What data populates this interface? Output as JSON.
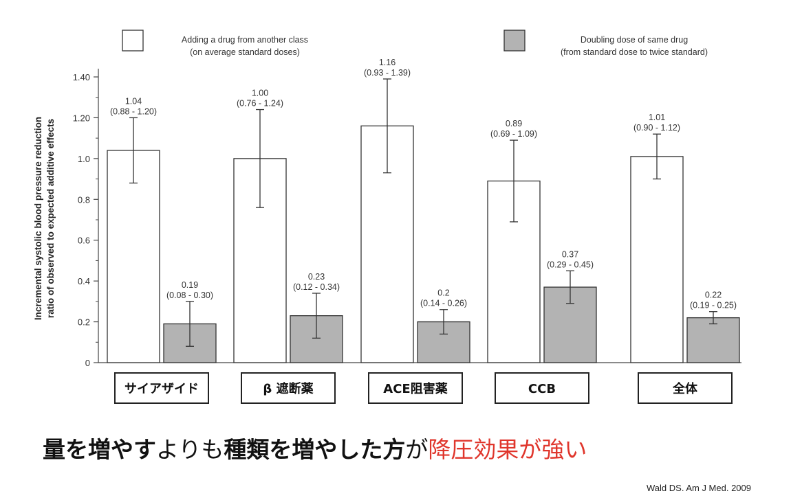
{
  "chart_data": {
    "type": "bar",
    "categories": [
      "サイアザイド",
      "β 遮断薬",
      "ACE阻害薬",
      "CCB",
      "全体"
    ],
    "ylabel": [
      "Incremental systolic blood pressure reduction",
      "ratio of observed to expected additive effects"
    ],
    "yticks": [
      "0",
      "0.2",
      "0.4",
      "0.6",
      "0.8",
      "1.0",
      "1.20",
      "1.40"
    ],
    "ylim": [
      0,
      1.45
    ],
    "series": [
      {
        "name": "Adding a drug from another class\n(on average standard doses)",
        "color": "#ffffff",
        "values": [
          1.04,
          1.0,
          1.16,
          0.89,
          1.01
        ],
        "ci_low": [
          0.88,
          0.76,
          0.93,
          0.69,
          0.9
        ],
        "ci_high": [
          1.2,
          1.24,
          1.39,
          1.09,
          1.12
        ],
        "labels": [
          "1.04",
          "1.00",
          "1.16",
          "0.89",
          "1.01"
        ],
        "ci_labels": [
          "(0.88 - 1.20)",
          "(0.76 - 1.24)",
          "(0.93 - 1.39)",
          "(0.69 - 1.09)",
          "(0.90 - 1.12)"
        ]
      },
      {
        "name": "Doubling dose of same drug\n(from standard dose to twice standard)",
        "color": "#b3b3b3",
        "values": [
          0.19,
          0.23,
          0.2,
          0.37,
          0.22
        ],
        "ci_low": [
          0.08,
          0.12,
          0.14,
          0.29,
          0.19
        ],
        "ci_high": [
          0.3,
          0.34,
          0.26,
          0.45,
          0.25
        ],
        "labels": [
          "0.19",
          "0.23",
          "0.2",
          "0.37",
          "0.22"
        ],
        "ci_labels": [
          "(0.08 - 0.30)",
          "(0.12 - 0.34)",
          "(0.14 - 0.26)",
          "(0.29 - 0.45)",
          "(0.19 - 0.25)"
        ]
      }
    ],
    "legend": [
      {
        "line1": "Adding a drug from another class",
        "line2": "(on average standard doses)"
      },
      {
        "line1": "Doubling dose of same drug",
        "line2": "(from standard dose to twice standard)"
      }
    ]
  },
  "caption": {
    "parts": [
      {
        "text": "量を増やす",
        "style": "b"
      },
      {
        "text": "よりも",
        "style": "r"
      },
      {
        "text": "種類を増やした方",
        "style": "b"
      },
      {
        "text": "が",
        "style": "r"
      },
      {
        "text": "降圧効果が強い",
        "style": "red"
      }
    ]
  },
  "citation": "Wald DS. Am J Med. 2009"
}
